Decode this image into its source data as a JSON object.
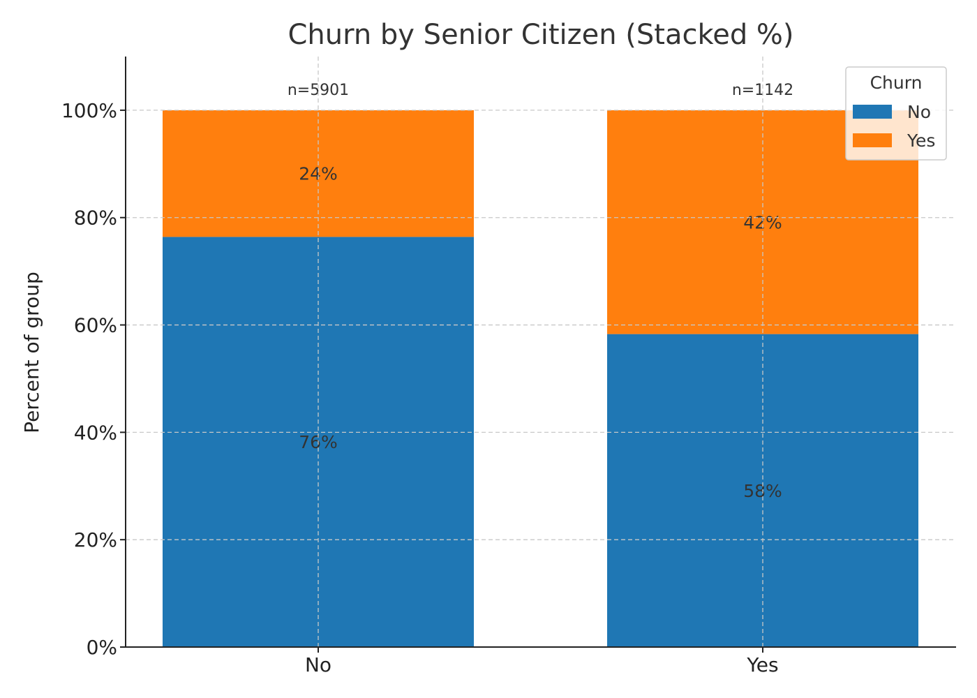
{
  "chart_data": {
    "type": "bar",
    "stacked": true,
    "title": "Churn by Senior Citizen (Stacked %)",
    "xlabel": "",
    "ylabel": "Percent of group",
    "categories": [
      "No",
      "Yes"
    ],
    "counts": [
      "n=5901",
      "n=1142"
    ],
    "ylim": [
      0,
      1.1
    ],
    "yticks": [
      {
        "value": 0,
        "label": "0%"
      },
      {
        "value": 0.2,
        "label": "20%"
      },
      {
        "value": 0.4,
        "label": "40%"
      },
      {
        "value": 0.6,
        "label": "60%"
      },
      {
        "value": 0.8,
        "label": "80%"
      },
      {
        "value": 1.0,
        "label": "100%"
      }
    ],
    "series": [
      {
        "name": "No",
        "color": "#1f77b4",
        "values": [
          0.764,
          0.583
        ],
        "labels": [
          "76%",
          "58%"
        ]
      },
      {
        "name": "Yes",
        "color": "#ff7f0e",
        "values": [
          0.236,
          0.417
        ],
        "labels": [
          "24%",
          "42%"
        ]
      }
    ],
    "legend": {
      "title": "Churn",
      "position": "top-right"
    },
    "grid": true
  }
}
